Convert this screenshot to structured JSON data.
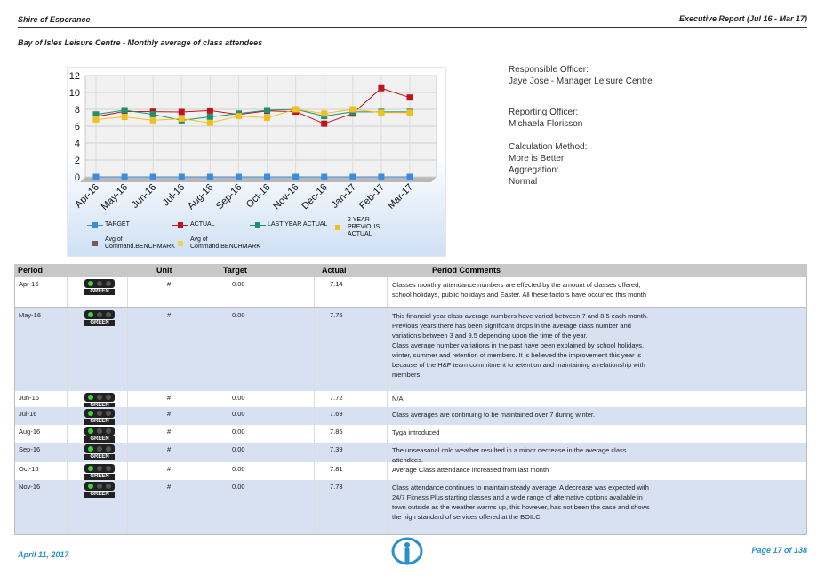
{
  "header": {
    "org": "Shire of Esperance",
    "report": "Executive Report (Jul 16 - Mar 17)",
    "subtitle": "Bay of Isles Leisure Centre - Monthly average of class attendees"
  },
  "chart_data": {
    "type": "line",
    "categories": [
      "Apr-16",
      "May-16",
      "Jun-16",
      "Jul-16",
      "Aug-16",
      "Sep-16",
      "Oct-16",
      "Nov-16",
      "Dec-16",
      "Jan-17",
      "Feb-17",
      "Mar-17"
    ],
    "series": [
      {
        "name": "TARGET",
        "color": "#3c8dde",
        "values": [
          0,
          0,
          0,
          0,
          0,
          0,
          0,
          0,
          0,
          0,
          0,
          0
        ]
      },
      {
        "name": "ACTUAL",
        "color": "#c0141c",
        "values": [
          7.14,
          7.75,
          7.72,
          7.69,
          7.85,
          7.39,
          7.81,
          7.73,
          6.3,
          7.5,
          10.5,
          9.4
        ]
      },
      {
        "name": "LAST YEAR ACTUAL",
        "color": "#1e9070",
        "values": [
          7.4,
          7.9,
          7.4,
          6.7,
          7.1,
          7.5,
          7.9,
          8.0,
          7.2,
          7.7,
          7.7,
          7.7
        ]
      },
      {
        "name": "2 YEAR PREVIOUS ACTUAL",
        "color": "#f0c020",
        "values": [
          6.8,
          7.1,
          6.7,
          6.9,
          6.4,
          7.2,
          7.0,
          8.0,
          7.5,
          8.0,
          7.6,
          7.6
        ]
      },
      {
        "name": "Avg of Command.BENCHMARK",
        "color": "#7a5a50",
        "values": [
          null,
          null,
          null,
          null,
          null,
          null,
          null,
          null,
          null,
          null,
          null,
          null
        ]
      },
      {
        "name": "Avg of Command.BENCHMARK",
        "color": "#f0d050",
        "values": [
          null,
          null,
          null,
          null,
          null,
          null,
          null,
          null,
          null,
          null,
          null,
          null
        ]
      }
    ],
    "ylim": [
      0,
      12
    ],
    "yticks": [
      0,
      2,
      4,
      6,
      8,
      10,
      12
    ],
    "grid": true
  },
  "info": [
    {
      "label": "Responsible Officer:",
      "value": "Jaye Jose - Manager Leisure Centre"
    },
    {
      "label": "Reporting Officer:",
      "value": "Michaela Florisson"
    },
    {
      "label": "Calculation Method:",
      "value": "More is Better"
    },
    {
      "label": "Aggregation:",
      "value": "Normal"
    }
  ],
  "table": {
    "columns": [
      "Period",
      "Unit",
      "Target",
      "Actual",
      "Period Comments"
    ],
    "rows": [
      [
        "Apr-16",
        "GREEN",
        "#",
        "0.00",
        "7.14",
        "Classes monthly attendance numbers are effected by the amount of classes offered, school holidays, public holidays and Easter. All these factors have occurred this month"
      ],
      [
        "May-16",
        "GREEN",
        "#",
        "0.00",
        "7.75",
        "This financial year class average numbers have varied between 7 and 8.5 each month. Previous years there has been significant drops in the average class number and variations between 3 and 9.5 depending upon the time of the year.\nClass average number variations in the past have been explained by school holidays, winter, summer and retention of members. It is believed the improvement this year is because of the H&F team commitment to retention and maintaining a relationship with members."
      ],
      [
        "Jun-16",
        "GREEN",
        "#",
        "0.00",
        "7.72",
        "N/A"
      ],
      [
        "Jul-16",
        "GREEN",
        "#",
        "0.00",
        "7.69",
        "Class averages are continuing to be maintained over 7 during winter."
      ],
      [
        "Aug-16",
        "GREEN",
        "#",
        "0.00",
        "7.85",
        "Tyga introduced"
      ],
      [
        "Sep-16",
        "GREEN",
        "#",
        "0.00",
        "7.39",
        "The unseasonal cold  weather resulted in a minor decrease in the average class attendees."
      ],
      [
        "Oct-16",
        "GREEN",
        "#",
        "0.00",
        "7.81",
        "Average Class attendance increased from last month"
      ],
      [
        "Nov-16",
        "GREEN",
        "#",
        "0.00",
        "7.73",
        "Class attendance continues to maintain steady average.  A decrease was expected with 24/7 Fitness Plus starting classes and a wide range of alternative options available in town outside as the weather warms up, this however, has not been the case and shows the high standard of  services offered at the BOILC."
      ]
    ]
  },
  "footer": {
    "date": "April 11, 2017",
    "page": "Page 17 of 138"
  }
}
